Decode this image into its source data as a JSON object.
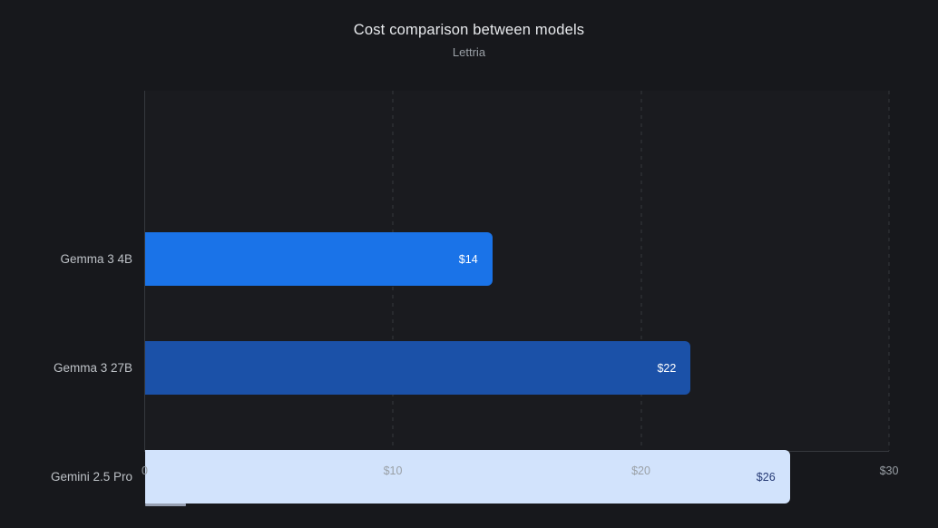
{
  "header": {
    "title": "Cost comparison between models",
    "subtitle": "Lettria"
  },
  "chart_data": {
    "type": "bar",
    "orientation": "horizontal",
    "title": "Cost comparison between models",
    "subtitle": "Lettria",
    "categories": [
      "Gemma 3 4B",
      "Gemma 3 27B",
      "Gemini 2.5 Pro"
    ],
    "values": [
      14,
      22,
      26
    ],
    "value_labels": [
      "$14",
      "$22",
      "$26"
    ],
    "bar_colors": [
      "#1a73e8",
      "#1b51a8",
      "#d2e3fc"
    ],
    "value_label_colors": [
      "#ffffff",
      "#ffffff",
      "#253a75"
    ],
    "xlabel": "",
    "ylabel": "",
    "xlim": [
      0,
      30
    ],
    "x_ticks": [
      {
        "value": 0,
        "label": "0"
      },
      {
        "value": 10,
        "label": "$10"
      },
      {
        "value": 20,
        "label": "$20"
      },
      {
        "value": 30,
        "label": "$30"
      }
    ],
    "grid": "dashed-vertical-at-10-20-30",
    "legend": "none",
    "notes": "small partial bar strip remnant below left edge of third bar"
  },
  "colors": {
    "background": "#17181c",
    "plot_background": "#1a1b1f",
    "axis_line": "#36393e",
    "gridline": "#35383d",
    "title": "#e8eaed",
    "subtitle": "#9aa0a6",
    "category_label": "#bdc1c6",
    "tick_label": "#9aa0a6",
    "partial_bar_strip": "#97a0b2"
  }
}
